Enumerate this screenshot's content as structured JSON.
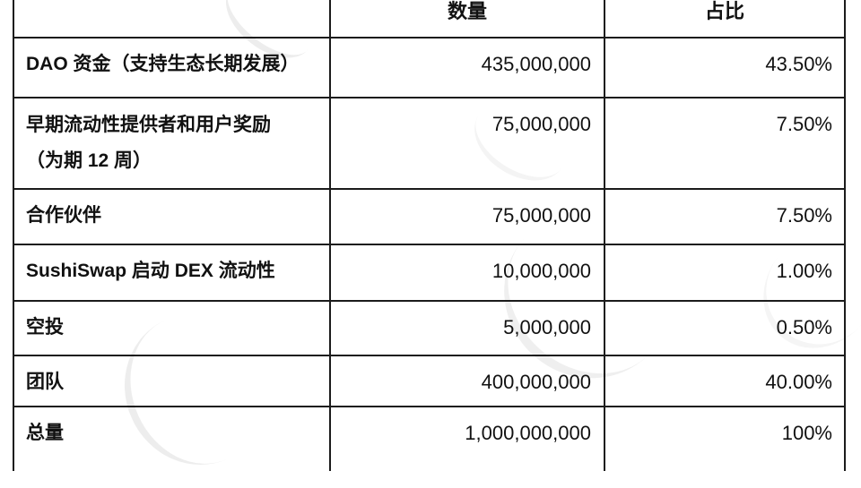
{
  "colors": {
    "border": "#1b1b1b",
    "text": "#111111",
    "background": "#ffffff",
    "watermark": "#ececec"
  },
  "table": {
    "title": "token-allocation",
    "columns": {
      "category_label": "",
      "amount_label": "数量",
      "share_label": "占比"
    },
    "rows": [
      {
        "category": "DAO 资金（支持生态长期发展）",
        "amount": "435,000,000",
        "share": "43.50%"
      },
      {
        "category": "早期流动性提供者和用户奖励\n（为期 12 周）",
        "amount": "75,000,000",
        "share": "7.50%"
      },
      {
        "category": "合作伙伴",
        "amount": "75,000,000",
        "share": "7.50%"
      },
      {
        "category": "SushiSwap 启动 DEX 流动性",
        "amount": "10,000,000",
        "share": "1.00%"
      },
      {
        "category": "空投",
        "amount": "5,000,000",
        "share": "0.50%"
      },
      {
        "category": "团队",
        "amount": "400,000,000",
        "share": "40.00%"
      },
      {
        "category": "总量",
        "amount": "1,000,000,000",
        "share": "100%"
      }
    ]
  }
}
